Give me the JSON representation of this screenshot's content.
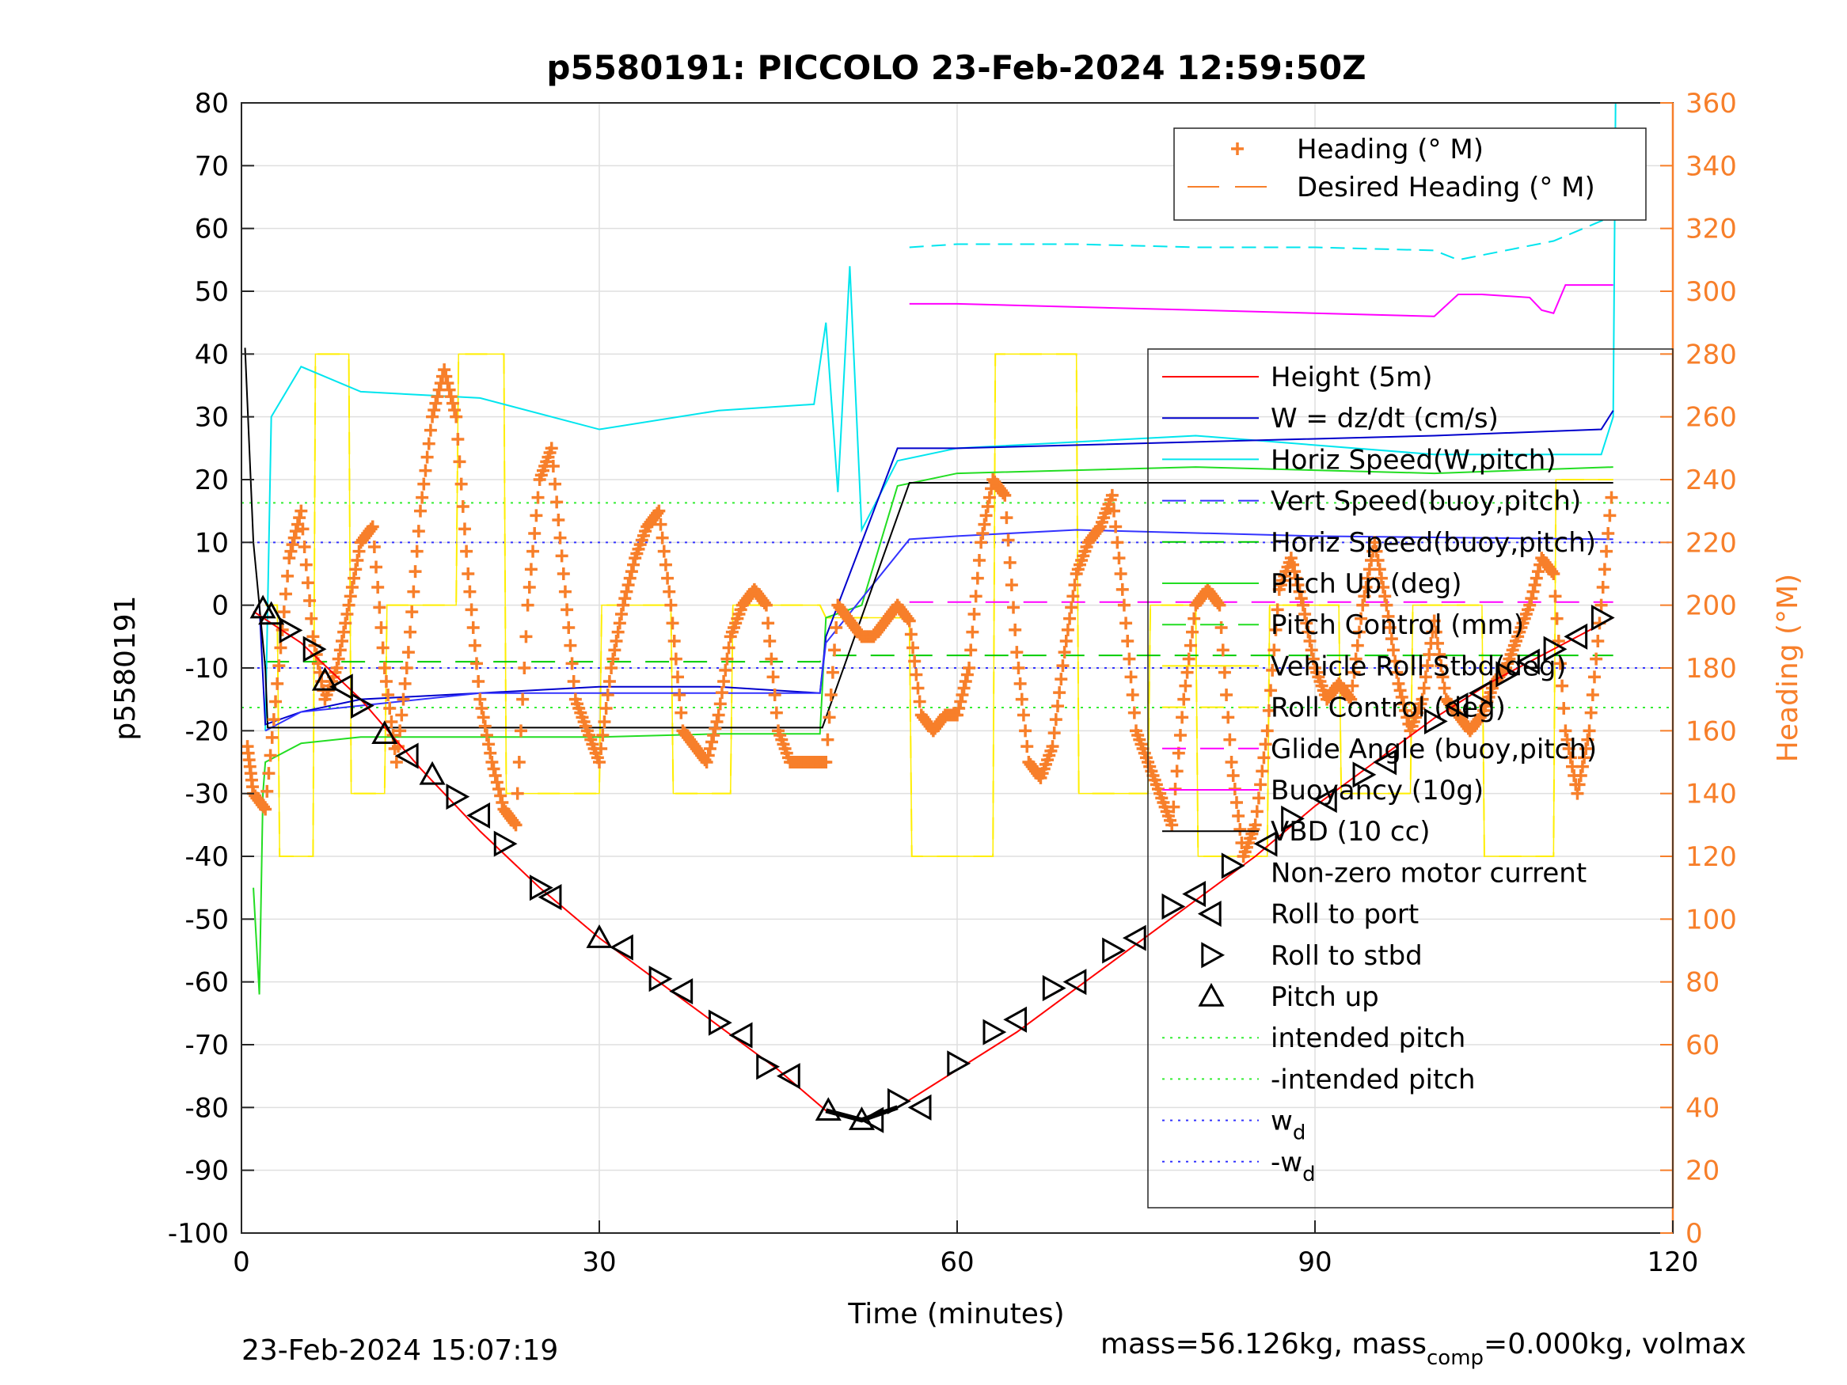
{
  "chart_data": {
    "type": "line",
    "title": "p5580191: PICCOLO 23-Feb-2024 12:59:50Z",
    "xlabel": "Time (minutes)",
    "ylabel": "p5580191",
    "y2label": "Heading (°M)",
    "xlim": [
      0,
      120
    ],
    "ylim": [
      -100,
      80
    ],
    "y2lim": [
      0,
      360
    ],
    "xticks": [
      "0",
      "30",
      "60",
      "90",
      "120"
    ],
    "yticks": [
      "80",
      "70",
      "60",
      "50",
      "40",
      "30",
      "20",
      "10",
      "0",
      "-10",
      "-20",
      "-30",
      "-40",
      "-50",
      "-60",
      "-70",
      "-80",
      "-90",
      "-100"
    ],
    "y2ticks": [
      "360",
      "340",
      "320",
      "300",
      "280",
      "260",
      "240",
      "220",
      "200",
      "180",
      "160",
      "140",
      "120",
      "100",
      "80",
      "60",
      "40",
      "20",
      "0"
    ],
    "grid": true,
    "colors": {
      "height": "#ff0000",
      "w": "#0000cc",
      "horiz_speed_w": "#00e5ee",
      "vert_speed_buoy": "#3333ff",
      "horiz_speed_buoy": "#00cc00",
      "pitch_up": "#22dd22",
      "pitch_control": "#ffee00",
      "roll_control": "#ffee00",
      "glide_angle": "#ff00ff",
      "buoyancy": "#ff00ff",
      "vbd": "#000000",
      "heading": "#f77f2a",
      "intended_pitch": "#33ee33",
      "wd": "#3333ff",
      "markers": "#000000"
    },
    "legend_heading": [
      {
        "label": "Heading (° M)",
        "style": "plus"
      },
      {
        "label": "Desired Heading (° M)",
        "style": "dash"
      }
    ],
    "legend_main": [
      {
        "label": "Height (5m)",
        "style": "solid",
        "color": "#ff0000"
      },
      {
        "label": "W = dz/dt (cm/s)",
        "style": "solid",
        "color": "#0000cc"
      },
      {
        "label": "Horiz Speed(W,pitch)",
        "style": "solid",
        "color": "#00e5ee"
      },
      {
        "label": "Vert Speed(buoy,pitch)",
        "style": "dash",
        "color": "#3333ff"
      },
      {
        "label": "Horiz Speed(buoy,pitch)",
        "style": "dash",
        "color": "#00cc00"
      },
      {
        "label": "Pitch Up (deg)",
        "style": "solid",
        "color": "#22dd22"
      },
      {
        "label": "Pitch Control (mm)",
        "style": "dash",
        "color": "#22dd22"
      },
      {
        "label": "Vehicle Roll Stbd(deg)",
        "style": "solid",
        "color": "#ffee00"
      },
      {
        "label": "Roll Control (deg)",
        "style": "dash",
        "color": "#ffee00"
      },
      {
        "label": "Glide Angle (buoy,pitch)",
        "style": "dash",
        "color": "#ff00ff"
      },
      {
        "label": "Buoyancy (10g)",
        "style": "solid",
        "color": "#ff00ff"
      },
      {
        "label": "VBD (10 cc)",
        "style": "solid",
        "color": "#000000"
      },
      {
        "label": "Non-zero motor current",
        "style": "thick",
        "color": "#000000"
      },
      {
        "label": "Roll to port",
        "style": "tri-left",
        "color": "#000000"
      },
      {
        "label": "Roll to stbd",
        "style": "tri-right",
        "color": "#000000"
      },
      {
        "label": "Pitch up",
        "style": "tri-up",
        "color": "#000000"
      },
      {
        "label": "intended pitch",
        "style": "dot",
        "color": "#33ee33"
      },
      {
        "label": "-intended pitch",
        "style": "dot",
        "color": "#33ee33"
      },
      {
        "label": "w",
        "sub": "d",
        "style": "dot",
        "color": "#3333ff"
      },
      {
        "label": "-w",
        "sub": "d",
        "style": "dot",
        "color": "#3333ff"
      }
    ],
    "series": [
      {
        "key": "height",
        "x": [
          1,
          5,
          10,
          15,
          20,
          25,
          30,
          35,
          40,
          45,
          49,
          52,
          55,
          60,
          65,
          70,
          75,
          80,
          85,
          90,
          95,
          100,
          105,
          110,
          115
        ],
        "y": [
          -1,
          -6,
          -15,
          -26,
          -36,
          -45,
          -53,
          -60,
          -67,
          -74,
          -80.5,
          -82,
          -80,
          -74,
          -68,
          -61,
          -54,
          -47,
          -40,
          -32,
          -25,
          -18,
          -12,
          -7,
          -2
        ]
      },
      {
        "key": "vbd",
        "x": [
          0.3,
          1,
          2,
          2.2,
          48.7,
          56,
          115
        ],
        "y": [
          41,
          10,
          -10,
          -19.5,
          -19.5,
          19.5,
          19.5
        ]
      },
      {
        "key": "w",
        "x": [
          1.5,
          2,
          5,
          10,
          20,
          30,
          40,
          48.5,
          49,
          55,
          60,
          80,
          100,
          114,
          115
        ],
        "y": [
          0,
          -19,
          -17,
          -15,
          -14,
          -13,
          -13,
          -14,
          -5,
          25,
          25,
          26,
          27,
          28,
          31
        ]
      },
      {
        "key": "vert_speed_buoy",
        "x": [
          2,
          5,
          20,
          48.5,
          49,
          56,
          60,
          70,
          90,
          115
        ],
        "y": [
          -20,
          -17,
          -14,
          -14,
          -6,
          10.5,
          11,
          12,
          11,
          10.5
        ]
      },
      {
        "key": "horiz_speed_w",
        "x": [
          2,
          2.5,
          5,
          10,
          20,
          30,
          40,
          48,
          49,
          50,
          51,
          52,
          55,
          60,
          80,
          100,
          114,
          115,
          115.2
        ],
        "y": [
          -20,
          30,
          38,
          34,
          33,
          28,
          31,
          32,
          45,
          18,
          54,
          12,
          23,
          25,
          27,
          24,
          24,
          30,
          80
        ]
      },
      {
        "key": "horiz_speed_w_upper",
        "x": [
          56,
          60,
          70,
          80,
          90,
          100,
          102,
          110,
          115
        ],
        "y": [
          57,
          57.5,
          57.5,
          57,
          57,
          56.5,
          55,
          58,
          62
        ]
      },
      {
        "key": "pitch_up",
        "x": [
          1,
          1.5,
          1.8,
          2,
          5,
          10,
          20,
          30,
          40,
          48.5,
          49,
          52,
          55,
          60,
          80,
          100,
          115
        ],
        "y": [
          -45,
          -62,
          -30,
          -25,
          -22,
          -21,
          -21,
          -21,
          -20.5,
          -20.5,
          -2,
          0,
          19,
          21,
          22,
          21,
          22
        ]
      },
      {
        "key": "pitch_control",
        "x": [
          2,
          48.5,
          49,
          57,
          115
        ],
        "y": [
          -9,
          -9,
          -8,
          -8,
          -8
        ]
      },
      {
        "key": "buoyancy",
        "x": [
          56,
          60,
          70,
          80,
          100,
          102,
          104,
          108,
          109,
          110,
          111,
          115
        ],
        "y": [
          48,
          48,
          47.5,
          47,
          46,
          49.5,
          49.5,
          49,
          47,
          46.5,
          51,
          51
        ]
      },
      {
        "key": "glide_angle",
        "x": [
          56,
          115
        ],
        "y": [
          0.5,
          0.5
        ]
      },
      {
        "key": "heading_deg",
        "x": [
          0.5,
          1,
          2,
          3,
          4,
          5,
          6,
          7,
          8,
          9,
          10,
          11,
          12,
          13,
          14,
          15,
          16,
          17,
          18,
          19,
          20,
          21,
          22,
          23,
          24,
          25,
          26,
          27,
          28,
          29,
          30,
          31,
          32,
          33,
          34,
          35,
          36,
          37,
          38,
          39,
          40,
          41,
          42,
          43,
          44,
          45,
          46,
          47,
          48,
          49,
          50,
          51,
          52,
          53,
          54,
          55,
          56,
          57,
          58,
          59,
          60,
          61,
          62,
          63,
          64,
          65,
          66,
          67,
          68,
          69,
          70,
          71,
          72,
          73,
          74,
          75,
          76,
          77,
          78,
          79,
          80,
          81,
          82,
          83,
          84,
          85,
          86,
          87,
          88,
          89,
          90,
          91,
          92,
          93,
          94,
          95,
          96,
          97,
          98,
          99,
          100,
          101,
          102,
          103,
          104,
          105,
          106,
          107,
          108,
          109,
          110,
          111,
          112,
          113,
          114,
          115
        ],
        "y": [
          155,
          140,
          135,
          175,
          215,
          230,
          190,
          170,
          180,
          200,
          220,
          225,
          180,
          150,
          185,
          230,
          260,
          275,
          260,
          210,
          170,
          150,
          135,
          130,
          200,
          240,
          250,
          210,
          170,
          160,
          150,
          180,
          200,
          215,
          225,
          230,
          200,
          160,
          155,
          150,
          165,
          190,
          200,
          205,
          200,
          160,
          150,
          150,
          150,
          150,
          200,
          195,
          190,
          190,
          195,
          200,
          195,
          165,
          160,
          165,
          165,
          180,
          220,
          240,
          235,
          185,
          150,
          145,
          155,
          185,
          210,
          220,
          225,
          235,
          200,
          160,
          150,
          140,
          130,
          170,
          200,
          205,
          200,
          150,
          120,
          130,
          160,
          205,
          215,
          200,
          180,
          170,
          175,
          170,
          200,
          220,
          200,
          175,
          160,
          170,
          195,
          170,
          165,
          160,
          165,
          175,
          180,
          190,
          200,
          215,
          210,
          160,
          140,
          160,
          200,
          240
        ]
      },
      {
        "key": "roll_control_steps",
        "x": [
          2,
          3,
          3.2,
          6,
          6.2,
          9,
          9.2,
          12,
          12.2,
          18,
          18.2,
          22,
          22.2,
          30,
          30.2,
          36,
          36.2,
          41,
          41.2,
          48.5,
          49,
          56,
          56.2,
          63,
          63.2,
          70,
          70.2,
          76,
          76.2,
          80,
          80.2,
          86,
          86.2,
          92,
          92.2,
          98,
          98.2,
          104,
          104.2,
          110,
          110.2,
          115
        ],
        "y": [
          0,
          0,
          -40,
          -40,
          40,
          40,
          -30,
          -30,
          0,
          0,
          40,
          40,
          -30,
          -30,
          0,
          0,
          -30,
          -30,
          0,
          0,
          -2,
          -2,
          -40,
          -40,
          40,
          40,
          -30,
          -30,
          0,
          0,
          -40,
          -40,
          0,
          0,
          -30,
          -30,
          0,
          0,
          -40,
          -40,
          20,
          20
        ]
      }
    ],
    "ref_lines": [
      {
        "key": "intended_pitch_pos",
        "y": 16.3
      },
      {
        "key": "intended_pitch_neg",
        "y": -16.3
      },
      {
        "key": "wd_pos",
        "y": 10
      },
      {
        "key": "wd_neg",
        "y": -10
      }
    ],
    "markers": {
      "tri_up": [
        [
          1.8,
          -0.5
        ],
        [
          2.5,
          -1.5
        ],
        [
          7,
          -12
        ],
        [
          12,
          -20.5
        ],
        [
          16,
          -27
        ],
        [
          30,
          -53
        ],
        [
          49.2,
          -80.5
        ],
        [
          52,
          -82
        ]
      ],
      "tri_right": [
        [
          4,
          -4
        ],
        [
          6,
          -7
        ],
        [
          10,
          -16
        ],
        [
          18,
          -30.5
        ],
        [
          22,
          -38
        ],
        [
          25,
          -45
        ],
        [
          35,
          -59.5
        ],
        [
          40,
          -66.5
        ],
        [
          44,
          -73.5
        ],
        [
          55,
          -79
        ],
        [
          60,
          -73
        ],
        [
          63,
          -68
        ],
        [
          68,
          -61
        ],
        [
          73,
          -55
        ],
        [
          78,
          -48
        ],
        [
          83,
          -41.5
        ],
        [
          88,
          -34
        ],
        [
          94,
          -27
        ],
        [
          100,
          -18.5
        ],
        [
          106,
          -11
        ],
        [
          110,
          -7
        ],
        [
          114,
          -2
        ]
      ],
      "tri_left": [
        [
          8.5,
          -13
        ],
        [
          14,
          -24
        ],
        [
          20,
          -33.5
        ],
        [
          26,
          -46.5
        ],
        [
          32,
          -54.5
        ],
        [
          37,
          -61.5
        ],
        [
          42,
          -68.5
        ],
        [
          46,
          -75
        ],
        [
          53,
          -82
        ],
        [
          57,
          -80
        ],
        [
          65,
          -66
        ],
        [
          70,
          -60
        ],
        [
          75,
          -53
        ],
        [
          80,
          -46
        ],
        [
          86,
          -38
        ],
        [
          91,
          -31
        ],
        [
          96,
          -25
        ],
        [
          102,
          -16
        ],
        [
          104,
          -14
        ],
        [
          108,
          -9
        ],
        [
          112,
          -5
        ]
      ]
    },
    "motor_current": [
      [
        0.5,
        0
      ],
      [
        3,
        -1.5
      ],
      [
        49,
        -80.5
      ],
      [
        52,
        -82
      ],
      [
        55,
        -80
      ]
    ]
  },
  "footer": {
    "timestamp": "23-Feb-2024 15:07:19",
    "mass_prefix": "mass=56.126kg, mass",
    "mass_sub": "comp",
    "mass_suffix": "=0.000kg, volmax"
  }
}
